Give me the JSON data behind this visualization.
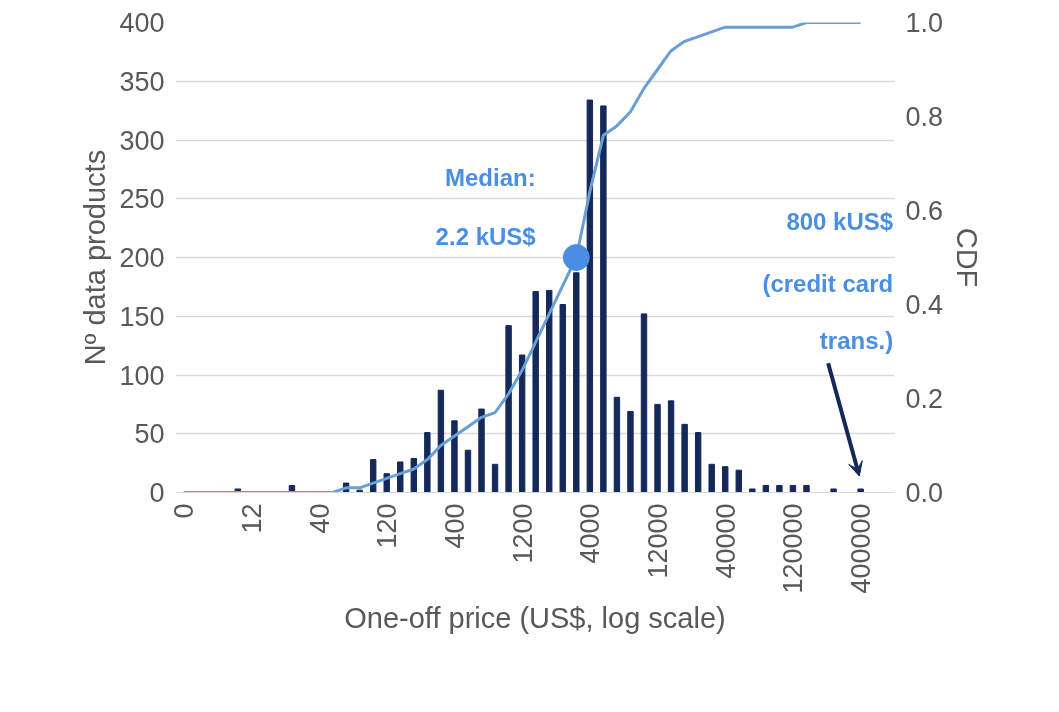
{
  "chart_data": {
    "type": "bar",
    "xlabel": "One-off price (US$, log scale)",
    "ylabel": "Nº data products",
    "y2label": "CDF",
    "categories": [
      "0",
      null,
      null,
      null,
      null,
      "12",
      null,
      null,
      null,
      null,
      "40",
      null,
      null,
      null,
      null,
      "120",
      null,
      null,
      null,
      null,
      "400",
      null,
      null,
      null,
      null,
      "1200",
      null,
      null,
      null,
      null,
      "4000",
      null,
      null,
      null,
      null,
      "12000",
      null,
      null,
      null,
      null,
      "40000",
      null,
      null,
      null,
      null,
      "120000",
      null,
      null,
      null,
      null,
      "400000"
    ],
    "series": [
      {
        "color": "#14285a",
        "values": [
          0,
          0,
          0,
          0,
          3,
          0,
          0,
          0,
          6,
          0,
          0,
          0,
          8,
          2,
          28,
          16,
          26,
          29,
          51,
          87,
          61,
          36,
          71,
          24,
          142,
          117,
          171,
          172,
          160,
          187,
          334,
          329,
          81,
          69,
          152,
          75,
          78,
          58,
          51,
          24,
          22,
          19,
          3,
          6,
          6,
          6,
          6,
          0,
          3,
          0,
          3
        ]
      },
      {
        "type": "line",
        "axis": "y2",
        "color": "#6a9fd6",
        "values": [
          0,
          0,
          0,
          0,
          0,
          0,
          0,
          0,
          0,
          0,
          0,
          0,
          0.01,
          0.01,
          0.02,
          0.03,
          0.04,
          0.05,
          0.07,
          0.1,
          0.12,
          0.14,
          0.16,
          0.17,
          0.21,
          0.26,
          0.32,
          0.38,
          0.44,
          0.5,
          0.64,
          0.76,
          0.78,
          0.81,
          0.86,
          0.9,
          0.94,
          0.96,
          0.97,
          0.98,
          0.99,
          0.99,
          0.99,
          0.99,
          0.99,
          0.99,
          1,
          1,
          1,
          1,
          1
        ]
      },
      {
        "type": "scatter",
        "axis": "y2",
        "color": "#4a8fe3",
        "marker": "circle",
        "values": [
          null,
          null,
          null,
          null,
          null,
          null,
          null,
          null,
          null,
          null,
          null,
          null,
          null,
          null,
          null,
          null,
          null,
          null,
          null,
          null,
          null,
          null,
          null,
          null,
          null,
          null,
          null,
          null,
          null,
          0.5,
          null,
          null,
          null,
          null,
          null,
          null,
          null,
          null,
          null,
          null,
          null,
          null,
          null,
          null,
          null,
          null,
          null,
          null,
          null,
          null,
          null
        ]
      }
    ],
    "ylim": [
      0,
      400
    ],
    "yticks": [
      0,
      50,
      100,
      150,
      200,
      250,
      300,
      350,
      400
    ],
    "y2lim": [
      0,
      1
    ],
    "y2ticks": [
      {
        "value": 0,
        "label": "0.0"
      },
      0.2,
      0.4,
      0.6,
      0.8,
      {
        "value": 1,
        "label": "1.0"
      }
    ],
    "grid": "y",
    "annotations": [
      "Median:",
      "2.2 kUS$",
      "800 kUS$",
      "(credit card",
      "trans.)"
    ]
  }
}
